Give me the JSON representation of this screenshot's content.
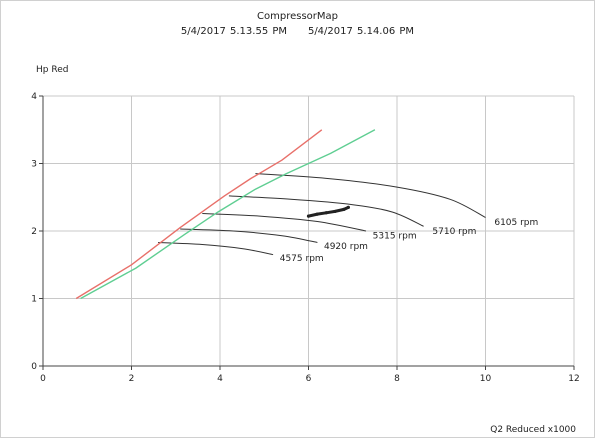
{
  "chart_data": {
    "type": "line",
    "title": "CompressorMap",
    "subtitle_parts": [
      "5/4/2017 5.13.55 PM",
      "5/4/2017 5.14.06 PM"
    ],
    "xlabel": "Q2 Reduced x1000",
    "ylabel": "Hp Red",
    "xlim": [
      0,
      12
    ],
    "ylim": [
      0,
      4
    ],
    "x_ticks": [
      0,
      2,
      4,
      6,
      8,
      10,
      12
    ],
    "y_ticks": [
      0,
      1,
      2,
      3,
      4
    ],
    "grid": true,
    "colors": {
      "surge_red": "#e8706a",
      "surge_green": "#5fce92",
      "speed_lines": "#333333",
      "operating_points": "#222222",
      "grid": "#c8c8c8"
    },
    "series": [
      {
        "role": "surge-line-red",
        "x": [
          0.75,
          2.0,
          3.1,
          4.1,
          4.7,
          5.4,
          6.3
        ],
        "y": [
          1.0,
          1.5,
          2.05,
          2.52,
          2.78,
          3.05,
          3.5
        ]
      },
      {
        "role": "surge-line-green",
        "x": [
          0.85,
          2.1,
          3.2,
          3.95,
          4.8,
          5.5,
          6.5,
          7.5
        ],
        "y": [
          1.0,
          1.45,
          1.95,
          2.28,
          2.62,
          2.85,
          3.15,
          3.5
        ]
      }
    ],
    "speed_lines": [
      {
        "label": "4575 rpm",
        "label_at": [
          5.35,
          1.6
        ],
        "x": [
          2.6,
          3.6,
          4.5,
          5.2
        ],
        "y": [
          1.83,
          1.8,
          1.74,
          1.65
        ]
      },
      {
        "label": "4920 rpm",
        "label_at": [
          6.35,
          1.78
        ],
        "x": [
          3.1,
          4.3,
          5.4,
          6.2
        ],
        "y": [
          2.03,
          2.0,
          1.93,
          1.83
        ]
      },
      {
        "label": "5315 rpm",
        "label_at": [
          7.45,
          1.93
        ],
        "x": [
          3.6,
          4.9,
          6.2,
          7.3
        ],
        "y": [
          2.26,
          2.22,
          2.14,
          2.0
        ]
      },
      {
        "label": "5710 rpm",
        "label_at": [
          8.8,
          2.0
        ],
        "x": [
          4.2,
          5.6,
          7.0,
          7.9,
          8.6
        ],
        "y": [
          2.52,
          2.47,
          2.39,
          2.28,
          2.07
        ]
      },
      {
        "label": "6105 rpm",
        "label_at": [
          10.2,
          2.13
        ],
        "x": [
          4.8,
          6.4,
          8.0,
          9.2,
          10.0
        ],
        "y": [
          2.85,
          2.78,
          2.65,
          2.47,
          2.2
        ]
      }
    ],
    "operating_points": {
      "x": [
        6.0,
        6.2,
        6.4,
        6.6,
        6.8,
        6.9
      ],
      "y": [
        2.22,
        2.25,
        2.27,
        2.29,
        2.32,
        2.35
      ]
    }
  }
}
